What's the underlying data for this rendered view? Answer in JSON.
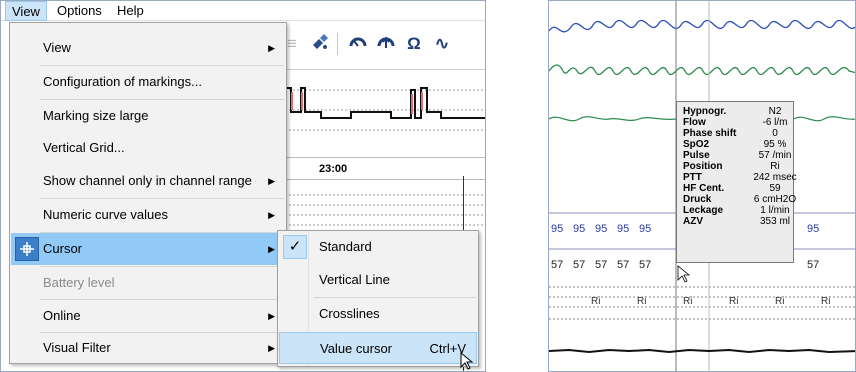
{
  "menubar": {
    "items": [
      {
        "label": "View",
        "active": true
      },
      {
        "label": "Options",
        "active": false
      },
      {
        "label": "Help",
        "active": false
      }
    ]
  },
  "toolbar": {
    "icons": [
      "satellite-icon",
      "gauge-icon",
      "gauge-up-icon",
      "ohm-icon",
      "sine-wave-icon"
    ],
    "ohm_glyph": "Ω",
    "wave_glyph": "∿"
  },
  "chart": {
    "time_label": "23:00"
  },
  "view_menu": {
    "items": [
      {
        "label": "View",
        "submenu": true,
        "disabled": false
      },
      {
        "label": "Configuration of markings...",
        "submenu": false,
        "disabled": false
      },
      {
        "label": "Marking size large",
        "submenu": false,
        "disabled": false
      },
      {
        "label": "Vertical Grid...",
        "submenu": false,
        "disabled": false
      },
      {
        "label": "Show channel only in channel range",
        "submenu": true,
        "disabled": false
      },
      {
        "label": "Numeric curve values",
        "submenu": true,
        "disabled": false
      },
      {
        "label": "Cursor",
        "submenu": true,
        "disabled": false,
        "highlighted": true
      },
      {
        "label": "Battery level",
        "submenu": false,
        "disabled": true
      },
      {
        "label": "Online",
        "submenu": true,
        "disabled": false
      },
      {
        "label": "Visual Filter",
        "submenu": true,
        "disabled": false
      }
    ]
  },
  "cursor_submenu": {
    "items": [
      {
        "label": "Standard",
        "checked": true,
        "shortcut": ""
      },
      {
        "label": "Vertical Line",
        "checked": false,
        "shortcut": ""
      },
      {
        "label": "Crosslines",
        "checked": false,
        "shortcut": ""
      },
      {
        "label": "Value cursor",
        "checked": false,
        "shortcut": "Ctrl+V",
        "hovered": true
      }
    ],
    "check_glyph": "✓"
  },
  "value_tooltip": {
    "rows": [
      {
        "key": "Hypnogr.",
        "value": "N2"
      },
      {
        "key": "Flow",
        "value": "-6 l/m"
      },
      {
        "key": "Phase shift",
        "value": "0"
      },
      {
        "key": "SpO2",
        "value": "95 %"
      },
      {
        "key": "Pulse",
        "value": "57 /min"
      },
      {
        "key": "Position",
        "value": "Ri"
      },
      {
        "key": "PTT",
        "value": "242 msec"
      },
      {
        "key": "HF Cent.",
        "value": "59"
      },
      {
        "key": "Druck",
        "value": "6 cmH2O"
      },
      {
        "key": "Leckage",
        "value": "1 l/min"
      },
      {
        "key": "AZV",
        "value": "353 ml"
      }
    ]
  },
  "right_values": {
    "spo2_row": [
      "95",
      "95",
      "95",
      "95",
      "95"
    ],
    "spo2_right": "95",
    "pulse_row": [
      "57",
      "57",
      "57",
      "57",
      "57"
    ],
    "pulse_right": "57",
    "position_row": [
      "Ri",
      "Ri",
      "Ri",
      "Ri",
      "Ri",
      "Ri"
    ]
  },
  "colors": {
    "menu_highlight": "#91c9f7",
    "submenu_hover": "#cce4f7",
    "wave_blue": "#2b4fb8",
    "wave_green": "#2e8b4f",
    "value_blue": "#2a3aa8"
  }
}
